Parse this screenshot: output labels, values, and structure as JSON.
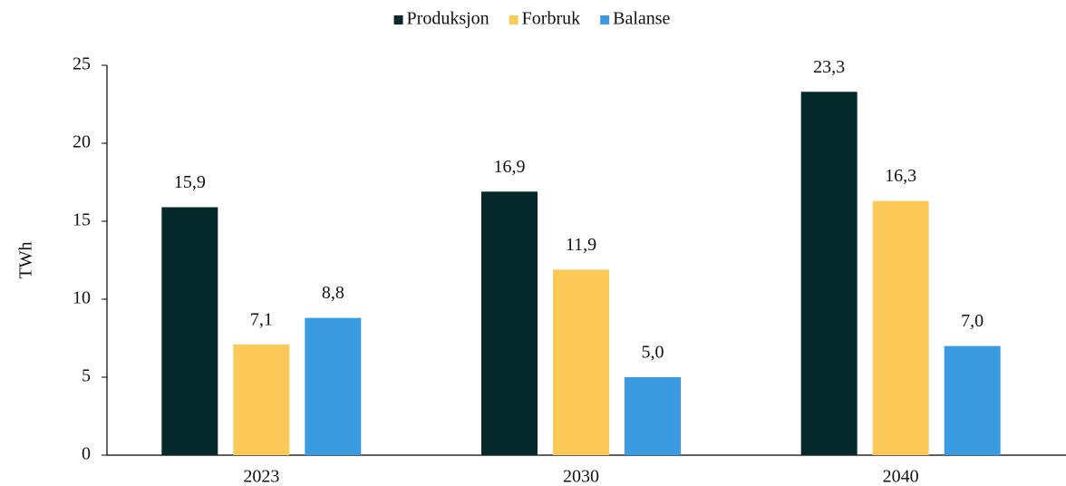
{
  "chart_data": {
    "type": "bar",
    "categories": [
      "2023",
      "2030",
      "2040"
    ],
    "series": [
      {
        "name": "Produksjon",
        "color": "#05292a",
        "values": [
          15.9,
          16.9,
          23.3
        ],
        "value_labels": [
          "15,9",
          "16,9",
          "23,3"
        ]
      },
      {
        "name": "Forbruk",
        "color": "#fdc959",
        "values": [
          7.1,
          11.9,
          16.3
        ],
        "value_labels": [
          "7,1",
          "11,9",
          "16,3"
        ]
      },
      {
        "name": "Balanse",
        "color": "#3b9be0",
        "values": [
          8.8,
          5.0,
          7.0
        ],
        "value_labels": [
          "8,8",
          "5,0",
          "7,0"
        ]
      }
    ],
    "y_label": "TWh",
    "ylim": [
      0,
      25
    ],
    "yticks": [
      0,
      5,
      10,
      15,
      20,
      25
    ],
    "grid": false,
    "legend": "top"
  }
}
